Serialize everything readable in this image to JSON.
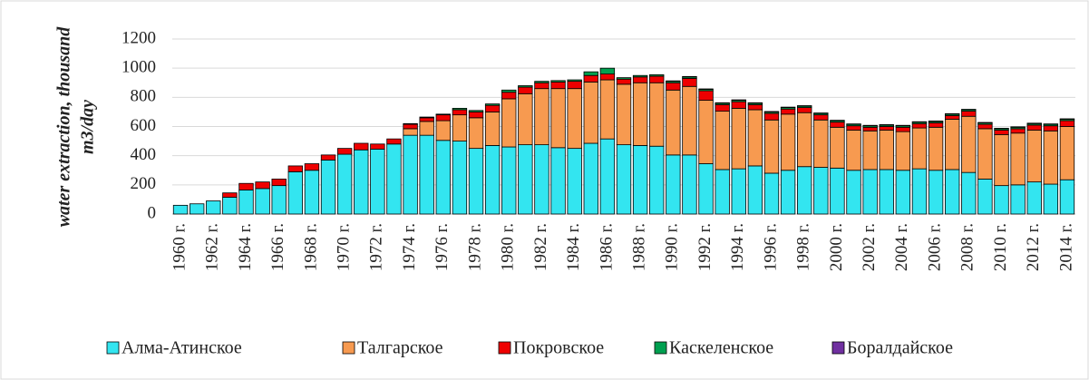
{
  "chart_data": {
    "type": "stacked_bar",
    "y_label": [
      "water extraction, thousand",
      "m3/day"
    ],
    "categories": [
      "1960 г.",
      null,
      "1962 г.",
      null,
      "1964 г.",
      null,
      "1966 г.",
      null,
      "1968 г.",
      null,
      "1970 г.",
      null,
      "1972 г.",
      null,
      "1974 г.",
      null,
      "1976 г.",
      null,
      "1978 г.",
      null,
      "1980 г.",
      null,
      "1982 г.",
      null,
      "1984 г.",
      null,
      "1986 г.",
      null,
      "1988 г.",
      null,
      "1990 г.",
      null,
      "1992 г.",
      null,
      "1994 г.",
      null,
      "1996 г.",
      null,
      "1998 г.",
      null,
      "2000 г.",
      null,
      "2002 г.",
      null,
      "2004 г.",
      null,
      "2006 г.",
      null,
      "2008 г.",
      null,
      "2010 г.",
      null,
      "2012 г.",
      null,
      "2014 г."
    ],
    "series": [
      {
        "name": "Алма-Атинское",
        "color": "#33e5f0",
        "values": [
          60,
          70,
          90,
          115,
          165,
          175,
          195,
          290,
          300,
          370,
          410,
          440,
          445,
          480,
          540,
          540,
          505,
          500,
          450,
          470,
          460,
          475,
          475,
          455,
          450,
          485,
          515,
          475,
          470,
          465,
          405,
          405,
          345,
          305,
          310,
          330,
          280,
          300,
          325,
          320,
          315,
          300,
          305,
          305,
          300,
          310,
          300,
          305,
          285,
          240,
          195,
          200,
          220,
          205,
          235
        ]
      },
      {
        "name": "Талгарское",
        "color": "#f79a50",
        "values": [
          0,
          0,
          0,
          0,
          0,
          0,
          0,
          0,
          0,
          0,
          0,
          0,
          0,
          0,
          45,
          95,
          135,
          180,
          210,
          230,
          330,
          350,
          385,
          405,
          410,
          420,
          405,
          415,
          430,
          435,
          445,
          470,
          435,
          400,
          415,
          385,
          365,
          385,
          370,
          325,
          280,
          275,
          265,
          270,
          265,
          280,
          295,
          345,
          385,
          345,
          350,
          355,
          355,
          365,
          365
        ]
      },
      {
        "name": "Покровское",
        "color": "#ee0000",
        "values": [
          0,
          0,
          0,
          30,
          45,
          45,
          45,
          40,
          45,
          35,
          40,
          45,
          35,
          35,
          30,
          25,
          40,
          35,
          40,
          45,
          45,
          45,
          40,
          45,
          50,
          45,
          40,
          35,
          40,
          45,
          50,
          55,
          65,
          45,
          45,
          35,
          45,
          35,
          35,
          35,
          35,
          30,
          25,
          25,
          30,
          30,
          30,
          25,
          35,
          30,
          30,
          30,
          35,
          35,
          40
        ]
      },
      {
        "name": "Каскеленское",
        "color": "#00a050",
        "values": [
          0,
          0,
          0,
          0,
          0,
          0,
          0,
          0,
          0,
          0,
          0,
          0,
          0,
          0,
          5,
          5,
          5,
          10,
          10,
          10,
          15,
          10,
          10,
          10,
          10,
          25,
          40,
          10,
          10,
          10,
          10,
          10,
          10,
          10,
          10,
          10,
          10,
          10,
          10,
          10,
          10,
          10,
          10,
          10,
          10,
          10,
          10,
          10,
          10,
          10,
          10,
          10,
          10,
          10,
          10
        ]
      },
      {
        "name": "Боралдайское",
        "color": "#7030a0",
        "values": [
          0,
          0,
          0,
          0,
          0,
          0,
          0,
          0,
          0,
          0,
          0,
          0,
          0,
          0,
          0,
          0,
          0,
          0,
          0,
          0,
          0,
          0,
          0,
          0,
          0,
          0,
          0,
          0,
          0,
          0,
          3,
          3,
          3,
          3,
          3,
          3,
          3,
          3,
          3,
          3,
          3,
          3,
          3,
          3,
          3,
          3,
          3,
          3,
          3,
          3,
          3,
          3,
          3,
          3,
          3
        ]
      }
    ],
    "ylim": [
      0,
      1200
    ],
    "yticks": [
      0,
      200,
      400,
      600,
      800,
      1000,
      1200
    ],
    "grid": true,
    "legend": "bottom"
  }
}
